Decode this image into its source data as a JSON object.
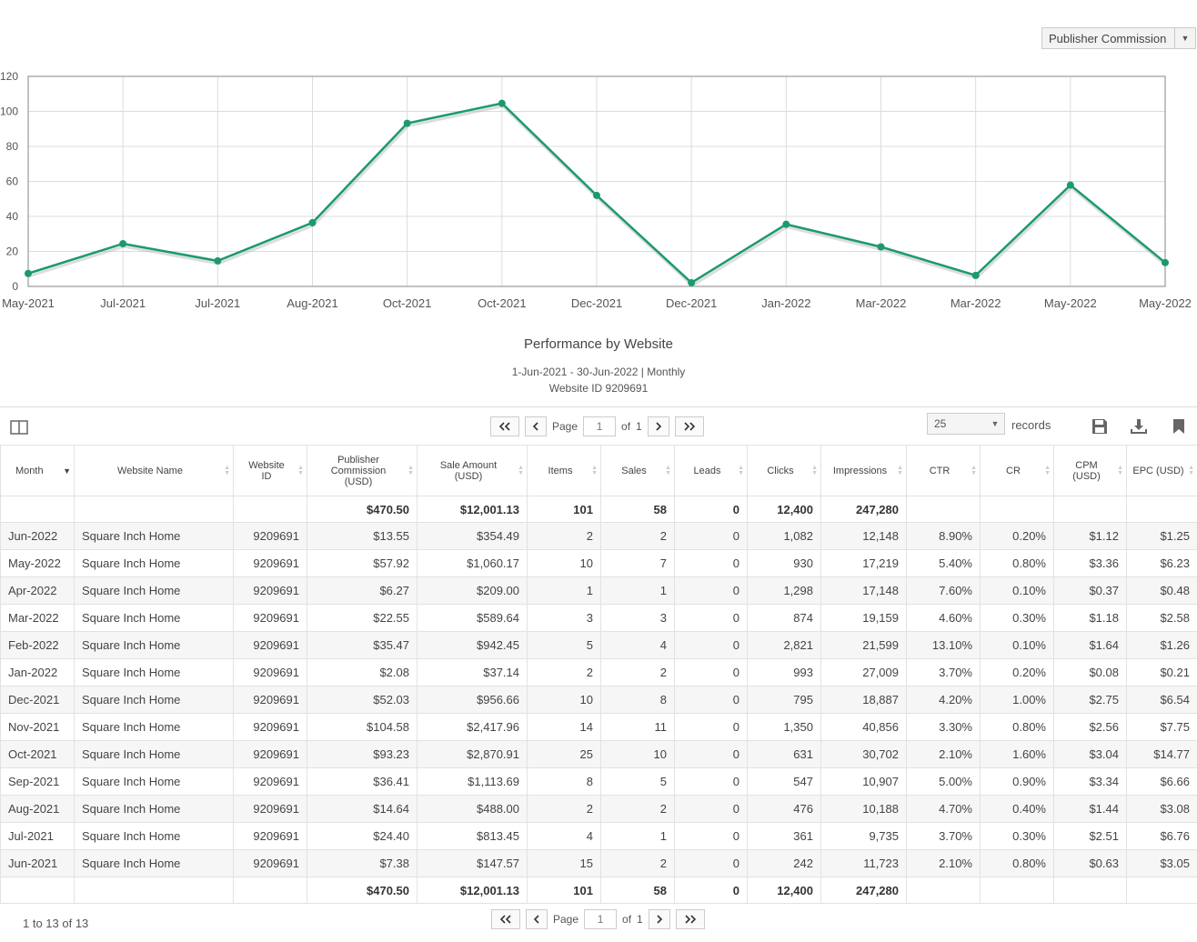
{
  "metric_select": {
    "value": "Publisher Commission"
  },
  "chart_data": {
    "type": "line",
    "x": [
      "May-2021",
      "Jul-2021",
      "Jul-2021",
      "Aug-2021",
      "Oct-2021",
      "Oct-2021",
      "Dec-2021",
      "Dec-2021",
      "Jan-2022",
      "Mar-2022",
      "Mar-2022",
      "May-2022",
      "May-2022"
    ],
    "series": [
      {
        "values": [
          7.4,
          24.4,
          14.6,
          36.4,
          93.2,
          104.6,
          52.0,
          2.1,
          35.5,
          22.6,
          6.3,
          57.9,
          13.6
        ]
      }
    ],
    "yticks": [
      0,
      20,
      40,
      60,
      80,
      100,
      120
    ],
    "ylim": [
      0,
      120
    ],
    "grid": true,
    "color": "#1a9a6e"
  },
  "report": {
    "title": "Performance by Website",
    "subtitle": "1-Jun-2021 - 30-Jun-2022 | Monthly",
    "website_line": "Website ID 9209691"
  },
  "pager": {
    "page_label": "Page",
    "page_value": "1",
    "of_label": "of",
    "total_pages": "1"
  },
  "records": {
    "value": "25",
    "label": "records"
  },
  "table": {
    "headers": [
      "Month",
      "Website Name",
      "Website ID",
      "Publisher Commission (USD)",
      "Sale Amount (USD)",
      "Items",
      "Sales",
      "Leads",
      "Clicks",
      "Impressions",
      "CTR",
      "CR",
      "CPM (USD)",
      "EPC (USD)"
    ],
    "totals": [
      "",
      "",
      "",
      "$470.50",
      "$12,001.13",
      "101",
      "58",
      "0",
      "12,400",
      "247,280",
      "",
      "",
      "",
      ""
    ],
    "rows": [
      [
        "Jun-2022",
        "Square Inch Home",
        "9209691",
        "$13.55",
        "$354.49",
        "2",
        "2",
        "0",
        "1,082",
        "12,148",
        "8.90%",
        "0.20%",
        "$1.12",
        "$1.25"
      ],
      [
        "May-2022",
        "Square Inch Home",
        "9209691",
        "$57.92",
        "$1,060.17",
        "10",
        "7",
        "0",
        "930",
        "17,219",
        "5.40%",
        "0.80%",
        "$3.36",
        "$6.23"
      ],
      [
        "Apr-2022",
        "Square Inch Home",
        "9209691",
        "$6.27",
        "$209.00",
        "1",
        "1",
        "0",
        "1,298",
        "17,148",
        "7.60%",
        "0.10%",
        "$0.37",
        "$0.48"
      ],
      [
        "Mar-2022",
        "Square Inch Home",
        "9209691",
        "$22.55",
        "$589.64",
        "3",
        "3",
        "0",
        "874",
        "19,159",
        "4.60%",
        "0.30%",
        "$1.18",
        "$2.58"
      ],
      [
        "Feb-2022",
        "Square Inch Home",
        "9209691",
        "$35.47",
        "$942.45",
        "5",
        "4",
        "0",
        "2,821",
        "21,599",
        "13.10%",
        "0.10%",
        "$1.64",
        "$1.26"
      ],
      [
        "Jan-2022",
        "Square Inch Home",
        "9209691",
        "$2.08",
        "$37.14",
        "2",
        "2",
        "0",
        "993",
        "27,009",
        "3.70%",
        "0.20%",
        "$0.08",
        "$0.21"
      ],
      [
        "Dec-2021",
        "Square Inch Home",
        "9209691",
        "$52.03",
        "$956.66",
        "10",
        "8",
        "0",
        "795",
        "18,887",
        "4.20%",
        "1.00%",
        "$2.75",
        "$6.54"
      ],
      [
        "Nov-2021",
        "Square Inch Home",
        "9209691",
        "$104.58",
        "$2,417.96",
        "14",
        "11",
        "0",
        "1,350",
        "40,856",
        "3.30%",
        "0.80%",
        "$2.56",
        "$7.75"
      ],
      [
        "Oct-2021",
        "Square Inch Home",
        "9209691",
        "$93.23",
        "$2,870.91",
        "25",
        "10",
        "0",
        "631",
        "30,702",
        "2.10%",
        "1.60%",
        "$3.04",
        "$14.77"
      ],
      [
        "Sep-2021",
        "Square Inch Home",
        "9209691",
        "$36.41",
        "$1,113.69",
        "8",
        "5",
        "0",
        "547",
        "10,907",
        "5.00%",
        "0.90%",
        "$3.34",
        "$6.66"
      ],
      [
        "Aug-2021",
        "Square Inch Home",
        "9209691",
        "$14.64",
        "$488.00",
        "2",
        "2",
        "0",
        "476",
        "10,188",
        "4.70%",
        "0.40%",
        "$1.44",
        "$3.08"
      ],
      [
        "Jul-2021",
        "Square Inch Home",
        "9209691",
        "$24.40",
        "$813.45",
        "4",
        "1",
        "0",
        "361",
        "9,735",
        "3.70%",
        "0.30%",
        "$2.51",
        "$6.76"
      ],
      [
        "Jun-2021",
        "Square Inch Home",
        "9209691",
        "$7.38",
        "$147.57",
        "15",
        "2",
        "0",
        "242",
        "11,723",
        "2.10%",
        "0.80%",
        "$0.63",
        "$3.05"
      ]
    ]
  },
  "footer": {
    "count": "1 to 13 of 13"
  }
}
